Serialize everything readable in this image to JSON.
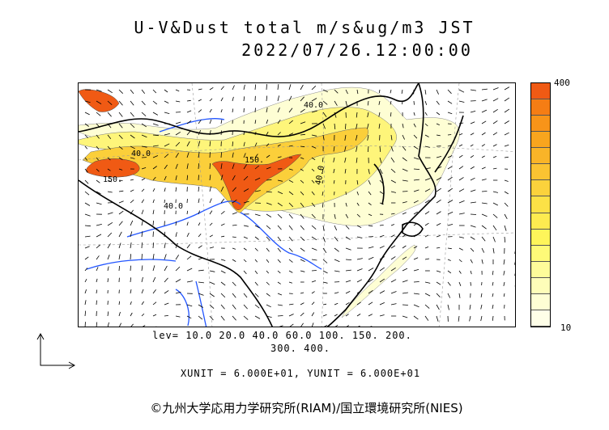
{
  "title": "U-V&Dust total m/s&ug/m3 JST",
  "datetime": "2022/07/26.12:00:00",
  "colorbar": {
    "max_label": "400",
    "min_label": "10",
    "colors": [
      "#f05a14",
      "#f57d14",
      "#f89419",
      "#f8a51e",
      "#f9b428",
      "#fac332",
      "#fbd23c",
      "#fce146",
      "#fdeb50",
      "#fef55a",
      "#fefa78",
      "#fefc9a",
      "#fefdb9",
      "#fefed4",
      "#fefee8"
    ]
  },
  "legend": {
    "levels_line1": "lev= 10.0 20.0 40.0 60.0 100. 150. 200.",
    "levels_line2": "300. 400.",
    "units": "XUNIT = 6.000E+01, YUNIT = 6.000E+01"
  },
  "contour_labels": [
    "40.0",
    "40.0",
    "150.",
    "150.",
    "40.0",
    "40.0"
  ],
  "copyright": "©九州大学応用力学研究所(RIAM)/国立環境研究所(NIES)"
}
